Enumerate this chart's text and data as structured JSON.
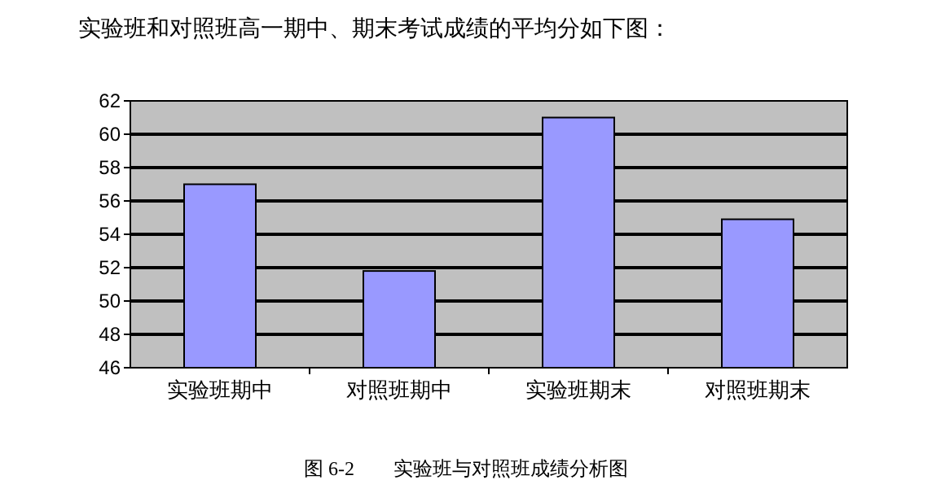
{
  "chart_data": {
    "type": "bar",
    "title": "实验班和对照班高一期中、期末考试成绩的平均分如下图：",
    "categories": [
      "实验班期中",
      "对照班期中",
      "实验班期末",
      "对照班期末"
    ],
    "values": [
      57,
      51.8,
      61,
      54.9
    ],
    "color": "#9999ff",
    "ylim": [
      46,
      62
    ],
    "yticks": [
      46,
      48,
      50,
      52,
      54,
      56,
      58,
      60,
      62
    ],
    "grid": "y",
    "annotations": [
      "图 6-2　　实验班与对照班成绩分析图"
    ]
  }
}
